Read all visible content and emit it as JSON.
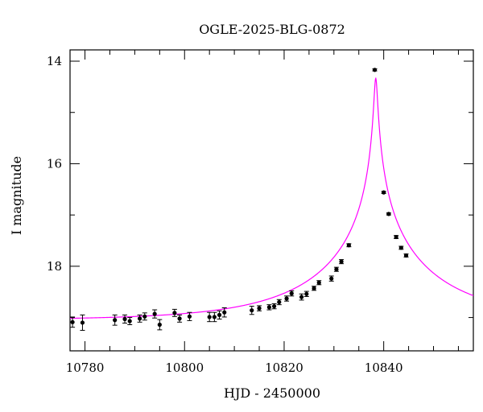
{
  "chart_data": {
    "type": "scatter",
    "title": "OGLE-2025-BLG-0872",
    "xlabel": "HJD - 2450000",
    "ylabel": "I magnitude",
    "xlim": [
      10777,
      10858
    ],
    "ylim": [
      19.65,
      13.78
    ],
    "y_inverted": true,
    "xticks": [
      10780,
      10800,
      10820,
      10840
    ],
    "yticks": [
      14,
      16,
      18
    ],
    "grid": false,
    "colors": {
      "data": "#000000",
      "model": "#ff00ff"
    },
    "series": [
      {
        "marker": "filled-circle",
        "points": [
          {
            "x": 10777.5,
            "y": 19.09,
            "err": 0.1
          },
          {
            "x": 10779.5,
            "y": 19.1,
            "err": 0.15
          },
          {
            "x": 10786.0,
            "y": 19.05,
            "err": 0.1
          },
          {
            "x": 10788.0,
            "y": 19.03,
            "err": 0.08
          },
          {
            "x": 10789.0,
            "y": 19.07,
            "err": 0.07
          },
          {
            "x": 10791.0,
            "y": 19.02,
            "err": 0.07
          },
          {
            "x": 10792.0,
            "y": 18.98,
            "err": 0.07
          },
          {
            "x": 10794.0,
            "y": 18.93,
            "err": 0.08
          },
          {
            "x": 10795.0,
            "y": 19.14,
            "err": 0.1
          },
          {
            "x": 10798.0,
            "y": 18.91,
            "err": 0.07
          },
          {
            "x": 10799.0,
            "y": 19.02,
            "err": 0.07
          },
          {
            "x": 10801.0,
            "y": 18.98,
            "err": 0.08
          },
          {
            "x": 10805.0,
            "y": 18.99,
            "err": 0.09
          },
          {
            "x": 10806.0,
            "y": 18.99,
            "err": 0.09
          },
          {
            "x": 10807.0,
            "y": 18.95,
            "err": 0.08
          },
          {
            "x": 10808.0,
            "y": 18.9,
            "err": 0.09
          },
          {
            "x": 10813.5,
            "y": 18.86,
            "err": 0.08
          },
          {
            "x": 10815.0,
            "y": 18.82,
            "err": 0.05
          },
          {
            "x": 10817.0,
            "y": 18.8,
            "err": 0.05
          },
          {
            "x": 10818.0,
            "y": 18.78,
            "err": 0.05
          },
          {
            "x": 10819.0,
            "y": 18.7,
            "err": 0.05
          },
          {
            "x": 10820.5,
            "y": 18.63,
            "err": 0.05
          },
          {
            "x": 10821.5,
            "y": 18.53,
            "err": 0.05
          },
          {
            "x": 10823.5,
            "y": 18.6,
            "err": 0.06
          },
          {
            "x": 10824.5,
            "y": 18.54,
            "err": 0.05
          },
          {
            "x": 10826.0,
            "y": 18.43,
            "err": 0.04
          },
          {
            "x": 10827.0,
            "y": 18.32,
            "err": 0.04
          },
          {
            "x": 10829.5,
            "y": 18.24,
            "err": 0.05
          },
          {
            "x": 10830.5,
            "y": 18.06,
            "err": 0.04
          },
          {
            "x": 10831.5,
            "y": 17.91,
            "err": 0.04
          },
          {
            "x": 10833.0,
            "y": 17.59,
            "err": 0.03
          },
          {
            "x": 10838.2,
            "y": 14.17,
            "err": 0.02
          },
          {
            "x": 10840.0,
            "y": 16.56,
            "err": 0.02
          },
          {
            "x": 10841.0,
            "y": 16.98,
            "err": 0.02
          },
          {
            "x": 10842.5,
            "y": 17.43,
            "err": 0.03
          },
          {
            "x": 10843.5,
            "y": 17.64,
            "err": 0.03
          },
          {
            "x": 10844.5,
            "y": 17.79,
            "err": 0.03
          }
        ]
      }
    ],
    "model_curve": {
      "t0": 10838.4,
      "tE": 25,
      "u0": 0.013,
      "baseline_mag": 19.05
    }
  }
}
